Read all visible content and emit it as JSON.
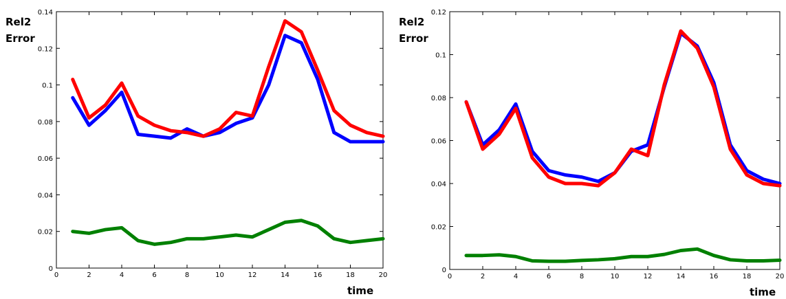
{
  "chart_data": [
    {
      "type": "line",
      "ylabel_lines": [
        "Rel2",
        "Error"
      ],
      "xlabel": "time",
      "xlim": [
        0,
        20
      ],
      "ylim": [
        0,
        0.14
      ],
      "xticks": [
        0,
        2,
        4,
        6,
        8,
        10,
        12,
        14,
        16,
        18,
        20
      ],
      "yticks": [
        0,
        0.02,
        0.04,
        0.06,
        0.08,
        0.1,
        0.12,
        0.14
      ],
      "x": [
        1,
        2,
        3,
        4,
        5,
        6,
        7,
        8,
        9,
        10,
        11,
        12,
        13,
        14,
        15,
        16,
        17,
        18,
        19,
        20
      ],
      "series": [
        {
          "color": "#0000ff",
          "values": [
            0.093,
            0.078,
            0.086,
            0.096,
            0.073,
            0.072,
            0.071,
            0.076,
            0.072,
            0.074,
            0.079,
            0.082,
            0.1,
            0.127,
            0.123,
            0.103,
            0.074,
            0.069,
            0.069,
            0.069
          ]
        },
        {
          "color": "#ff0000",
          "values": [
            0.103,
            0.082,
            0.089,
            0.101,
            0.083,
            0.078,
            0.075,
            0.074,
            0.072,
            0.076,
            0.085,
            0.083,
            0.11,
            0.135,
            0.129,
            0.108,
            0.086,
            0.078,
            0.074,
            0.072
          ]
        },
        {
          "color": "#008000",
          "values": [
            0.02,
            0.019,
            0.021,
            0.022,
            0.015,
            0.013,
            0.014,
            0.016,
            0.016,
            0.017,
            0.018,
            0.017,
            0.021,
            0.025,
            0.026,
            0.023,
            0.016,
            0.014,
            0.015,
            0.016
          ]
        }
      ]
    },
    {
      "type": "line",
      "ylabel_lines": [
        "Rel2",
        "Error"
      ],
      "xlabel": "time",
      "xlim": [
        0,
        20
      ],
      "ylim": [
        0,
        0.12
      ],
      "xticks": [
        0,
        2,
        4,
        6,
        8,
        10,
        12,
        14,
        16,
        18,
        20
      ],
      "yticks": [
        0,
        0.02,
        0.04,
        0.06,
        0.08,
        0.1,
        0.12
      ],
      "x": [
        1,
        2,
        3,
        4,
        5,
        6,
        7,
        8,
        9,
        10,
        11,
        12,
        13,
        14,
        15,
        16,
        17,
        18,
        19,
        20
      ],
      "series": [
        {
          "color": "#0000ff",
          "values": [
            0.078,
            0.058,
            0.065,
            0.077,
            0.055,
            0.046,
            0.044,
            0.043,
            0.041,
            0.045,
            0.055,
            0.058,
            0.085,
            0.11,
            0.104,
            0.087,
            0.058,
            0.046,
            0.042,
            0.04
          ]
        },
        {
          "color": "#ff0000",
          "values": [
            0.078,
            0.056,
            0.063,
            0.075,
            0.052,
            0.043,
            0.04,
            0.04,
            0.039,
            0.045,
            0.056,
            0.053,
            0.086,
            0.111,
            0.103,
            0.085,
            0.056,
            0.044,
            0.04,
            0.039
          ]
        },
        {
          "color": "#008000",
          "values": [
            0.0065,
            0.0065,
            0.0068,
            0.006,
            0.004,
            0.0038,
            0.0038,
            0.0042,
            0.0045,
            0.005,
            0.006,
            0.006,
            0.007,
            0.0088,
            0.0095,
            0.0065,
            0.0045,
            0.004,
            0.004,
            0.0043
          ]
        }
      ]
    }
  ]
}
